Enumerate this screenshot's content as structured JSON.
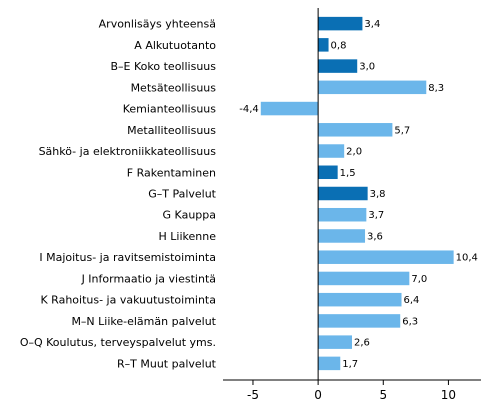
{
  "chart_data": {
    "type": "bar",
    "orientation": "horizontal",
    "title": "",
    "xlabel": "",
    "ylabel": "",
    "xlim": [
      -7.3,
      12.5
    ],
    "xticks": [
      -5,
      0,
      5,
      10
    ],
    "xtick_labels": [
      "-5",
      "0",
      "5",
      "10"
    ],
    "grid": false,
    "legend": "none",
    "colors": {
      "dark": "#0a6fb4",
      "light": "#6bb6ea",
      "axis": "#000000"
    },
    "categories": [
      "Arvonlisäys yhteensä",
      "A Alkutuotanto",
      "B–E Koko teollisuus",
      "Metsäteollisuus",
      "Kemianteollisuus",
      "Metalliteollisuus",
      "Sähkö- ja elektroniikkateollisuus",
      "F Rakentaminen",
      "G–T Palvelut",
      "G Kauppa",
      "H Liikenne",
      "I Majoitus- ja ravitsemistoiminta",
      "J Informaatio ja viestintä",
      "K Rahoitus- ja vakuutustoiminta",
      "M–N Liike-elämän palvelut",
      "O–Q Koulutus, terveyspalvelut yms.",
      "R–T Muut palvelut"
    ],
    "values": [
      3.4,
      0.8,
      3.0,
      8.3,
      -4.4,
      5.7,
      2.0,
      1.5,
      3.8,
      3.7,
      3.6,
      10.4,
      7.0,
      6.4,
      6.3,
      2.6,
      1.7
    ],
    "value_labels": [
      "3,4",
      "0,8",
      "3,0",
      "8,3",
      "-4,4",
      "5,7",
      "2,0",
      "1,5",
      "3,8",
      "3,7",
      "3,6",
      "10,4",
      "7,0",
      "6,4",
      "6,3",
      "2,6",
      "1,7"
    ],
    "bar_color": [
      "dark",
      "dark",
      "dark",
      "light",
      "light",
      "light",
      "light",
      "dark",
      "dark",
      "light",
      "light",
      "light",
      "light",
      "light",
      "light",
      "light",
      "light"
    ]
  }
}
